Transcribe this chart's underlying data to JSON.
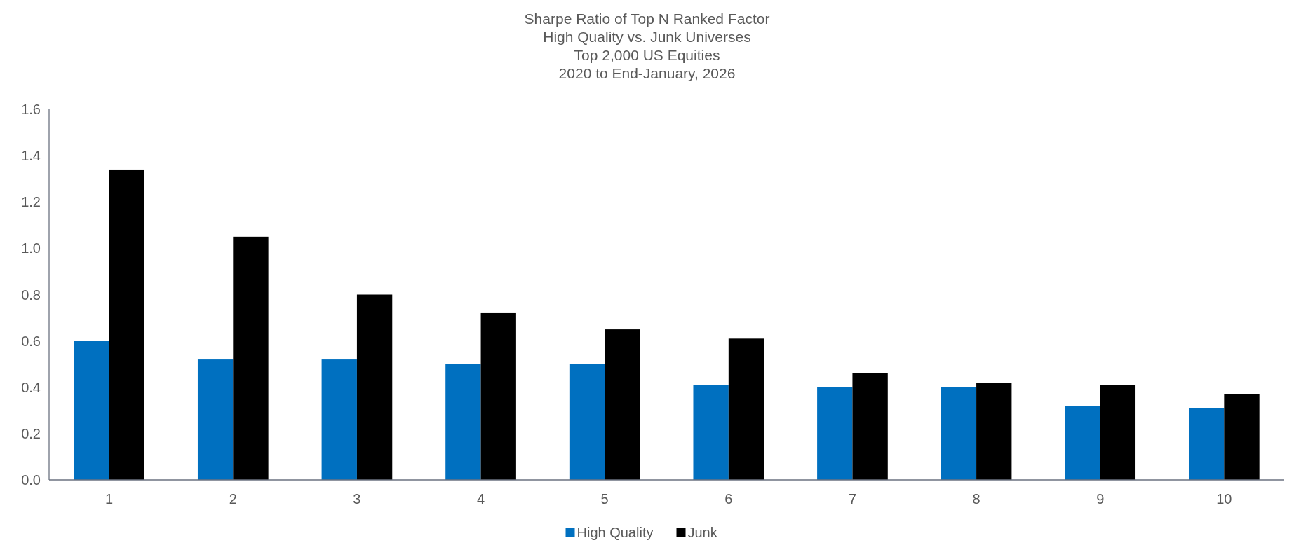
{
  "chart_data": {
    "type": "bar",
    "title": "Sharpe Ratio of Top N Ranked Factor",
    "subtitle": "High Quality vs. Junk Universes\nTop 2,000 US Equities\n2020 to End-January, 2026",
    "categories": [
      "1",
      "2",
      "3",
      "4",
      "5",
      "6",
      "7",
      "8",
      "9",
      "10"
    ],
    "series": [
      {
        "name": "High Quality",
        "color": "#0070c0",
        "values": [
          0.6,
          0.52,
          0.52,
          0.5,
          0.5,
          0.41,
          0.4,
          0.4,
          0.32,
          0.31
        ]
      },
      {
        "name": "Junk",
        "color": "#000000",
        "values": [
          1.34,
          1.05,
          0.8,
          0.72,
          0.65,
          0.61,
          0.46,
          0.42,
          0.41,
          0.37
        ]
      }
    ],
    "ylim": [
      0,
      1.6
    ],
    "yticks": [
      {
        "value": 0,
        "label": "0.0"
      },
      {
        "value": 0.2,
        "label": "0.2"
      },
      {
        "value": 0.4,
        "label": "0.4"
      },
      {
        "value": 0.6,
        "label": "0.6"
      },
      {
        "value": 0.8,
        "label": "0.8"
      },
      {
        "value": 1,
        "label": "1.0"
      },
      {
        "value": 1.2,
        "label": "1.2"
      },
      {
        "value": 1.4,
        "label": "1.4"
      },
      {
        "value": 1.6,
        "label": "1.6"
      }
    ],
    "legend": "bottom"
  }
}
